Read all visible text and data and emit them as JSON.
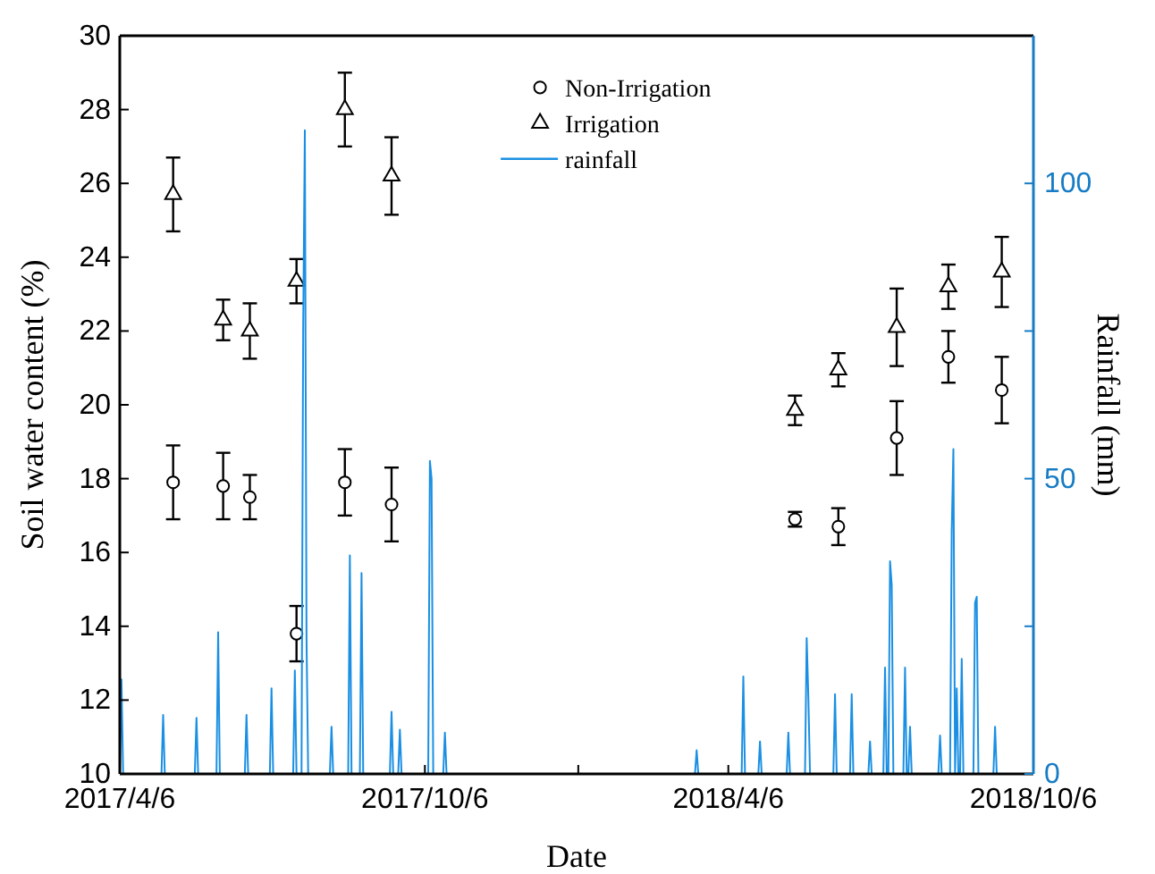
{
  "chart_data": {
    "type": "scatter",
    "xlabel": "Date",
    "ylabel": "Soil water content (%)",
    "y2label": "Rainfall (mm)",
    "xlim": [
      "2017-04-06",
      "2018-10-06"
    ],
    "xticks": [
      {
        "value": "2017-04-06",
        "label": "2017/4/6"
      },
      {
        "value": "2017-10-06",
        "label": "2017/10/6"
      },
      {
        "value": "2018-01-06",
        "label": null
      },
      {
        "value": "2018-04-06",
        "label": "2018/4/6"
      },
      {
        "value": "2018-10-06",
        "label": "2018/10/6"
      }
    ],
    "ylim": [
      10,
      30
    ],
    "yticks": [
      10,
      12,
      14,
      16,
      18,
      20,
      22,
      24,
      26,
      28,
      30
    ],
    "y2lim": [
      0,
      125
    ],
    "y2ticks": [
      0,
      {
        "value": 25,
        "label": null
      },
      50,
      {
        "value": 75,
        "label": null
      },
      100
    ],
    "legend": "top",
    "grid": false,
    "series": [
      {
        "name": "Non-Irrigation",
        "marker": "circle",
        "color": "#000000",
        "x": [
          "2017-05-08",
          "2017-06-07",
          "2017-06-23",
          "2017-07-21",
          "2017-08-19",
          "2017-09-16",
          "2018-05-16",
          "2018-06-11",
          "2018-07-16",
          "2018-08-16",
          "2018-09-17"
        ],
        "values": [
          17.9,
          17.8,
          17.5,
          13.8,
          17.9,
          17.3,
          16.9,
          16.7,
          19.1,
          21.3,
          20.4
        ],
        "errors": [
          1.0,
          0.9,
          0.6,
          0.75,
          0.9,
          1.0,
          0.2,
          0.5,
          1.0,
          0.7,
          0.9
        ]
      },
      {
        "name": "Irrigation",
        "marker": "triangle",
        "color": "#000000",
        "x": [
          "2017-05-08",
          "2017-06-07",
          "2017-06-23",
          "2017-07-21",
          "2017-08-19",
          "2017-09-16",
          "2018-05-16",
          "2018-06-11",
          "2018-07-16",
          "2018-08-16",
          "2018-09-17"
        ],
        "values": [
          25.7,
          22.3,
          22.0,
          23.35,
          28.0,
          26.2,
          19.85,
          20.95,
          22.1,
          23.2,
          23.6
        ],
        "errors": [
          1.0,
          0.55,
          0.75,
          0.6,
          1.0,
          1.05,
          0.4,
          0.45,
          1.05,
          0.6,
          0.95
        ]
      },
      {
        "name": "rainfall",
        "type": "line",
        "axis": "y2",
        "marker": "none",
        "line_style": "solid",
        "color": "#1a8fe3",
        "x": [
          "2017-04-06",
          "2017-04-07",
          "2017-04-08",
          "2017-05-01",
          "2017-05-02",
          "2017-05-03",
          "2017-05-21",
          "2017-05-22",
          "2017-05-23",
          "2017-06-03",
          "2017-06-04",
          "2017-06-05",
          "2017-06-20",
          "2017-06-21",
          "2017-06-22",
          "2017-07-05",
          "2017-07-06",
          "2017-07-07",
          "2017-07-19",
          "2017-07-20",
          "2017-07-21",
          "2017-07-24",
          "2017-07-25",
          "2017-07-26",
          "2017-07-27",
          "2017-07-28",
          "2017-08-10",
          "2017-08-11",
          "2017-08-12",
          "2017-08-21",
          "2017-08-22",
          "2017-08-23",
          "2017-08-28",
          "2017-08-29",
          "2017-08-30",
          "2017-09-15",
          "2017-09-16",
          "2017-09-17",
          "2017-09-20",
          "2017-09-21",
          "2017-09-22",
          "2017-10-08",
          "2017-10-09",
          "2017-10-10",
          "2017-10-11",
          "2017-10-17",
          "2017-10-18",
          "2017-10-19",
          "2018-03-17",
          "2018-03-18",
          "2018-03-19",
          "2018-04-14",
          "2018-04-15",
          "2018-04-16",
          "2018-04-24",
          "2018-04-25",
          "2018-04-26",
          "2018-05-11",
          "2018-05-12",
          "2018-05-13",
          "2018-05-22",
          "2018-05-23",
          "2018-05-24",
          "2018-05-25",
          "2018-06-08",
          "2018-06-09",
          "2018-06-10",
          "2018-06-18",
          "2018-06-19",
          "2018-06-20",
          "2018-06-29",
          "2018-06-30",
          "2018-07-01",
          "2018-07-08",
          "2018-07-09",
          "2018-07-10",
          "2018-07-11",
          "2018-07-12",
          "2018-07-13",
          "2018-07-14",
          "2018-07-20",
          "2018-07-21",
          "2018-07-22",
          "2018-07-23",
          "2018-07-24",
          "2018-07-25",
          "2018-08-10",
          "2018-08-11",
          "2018-08-12",
          "2018-08-17",
          "2018-08-18",
          "2018-08-19",
          "2018-08-20",
          "2018-08-21",
          "2018-08-22",
          "2018-08-23",
          "2018-08-24",
          "2018-08-25",
          "2018-08-31",
          "2018-09-01",
          "2018-09-02",
          "2018-09-03",
          "2018-09-12",
          "2018-09-13",
          "2018-09-14",
          "2018-10-06"
        ],
        "values": [
          0,
          16,
          0,
          0,
          10,
          0,
          0,
          9.5,
          0,
          0,
          24,
          0,
          0,
          10,
          0,
          0,
          14.5,
          0,
          0,
          17.5,
          0,
          0,
          76,
          109,
          23,
          0,
          0,
          8,
          0,
          0,
          37,
          0,
          0,
          34,
          0,
          0,
          10.5,
          0,
          0,
          7.5,
          0,
          0,
          53,
          50,
          0,
          0,
          7,
          0,
          0,
          4,
          0,
          0,
          16.5,
          0,
          0,
          5.5,
          0,
          0,
          7,
          0,
          0,
          23,
          13,
          0,
          0,
          13.5,
          0,
          0,
          13.5,
          0,
          0,
          5.5,
          0,
          0,
          18,
          0,
          0,
          36,
          32,
          0,
          0,
          18,
          0,
          0,
          8,
          0,
          0,
          6.5,
          0,
          0,
          41,
          55,
          0,
          14.5,
          0,
          0,
          19.5,
          0,
          0,
          29,
          30,
          0,
          0,
          8,
          0,
          0
        ]
      }
    ]
  }
}
